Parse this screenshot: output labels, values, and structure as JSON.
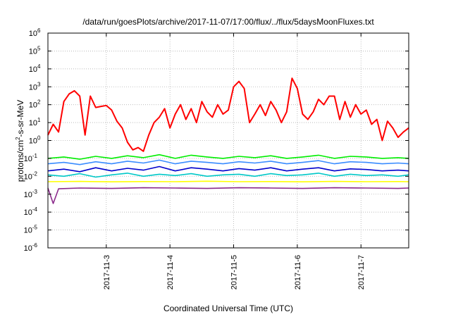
{
  "chart_data": {
    "type": "line",
    "title": "/data/run/goesPlots/archive/2017-11-07/17:00/flux/../flux/5daysMoonFluxes.txt",
    "xlabel": "Coordinated Universal Time (UTC)",
    "ylabel": "protons/cm2-s-sr-MeV",
    "ylabel_parts": {
      "pre": "protons/cm",
      "sup": "2",
      "post": "-s-sr-MeV"
    },
    "y_scale": "log",
    "ylim": [
      1e-06,
      1000000.0
    ],
    "xlim": [
      "2017-11-02 02:00",
      "2017-11-07 18:00"
    ],
    "grid": true,
    "legend": "none",
    "y_ticks": [
      {
        "value": 1e-06,
        "base": "10",
        "exp": "-6"
      },
      {
        "value": 1e-05,
        "base": "10",
        "exp": "-5"
      },
      {
        "value": 0.0001,
        "base": "10",
        "exp": "-4"
      },
      {
        "value": 0.001,
        "base": "10",
        "exp": "-3"
      },
      {
        "value": 0.01,
        "base": "10",
        "exp": "-2"
      },
      {
        "value": 0.1,
        "base": "10",
        "exp": "-1"
      },
      {
        "value": 1,
        "base": "10",
        "exp": "0"
      },
      {
        "value": 10,
        "base": "10",
        "exp": "1"
      },
      {
        "value": 100,
        "base": "10",
        "exp": "2"
      },
      {
        "value": 1000,
        "base": "10",
        "exp": "3"
      },
      {
        "value": 10000,
        "base": "10",
        "exp": "4"
      },
      {
        "value": 100000,
        "base": "10",
        "exp": "5"
      },
      {
        "value": 1000000,
        "base": "10",
        "exp": "6"
      }
    ],
    "x_ticks": [
      "2017-11-3",
      "2017-11-4",
      "2017-11-5",
      "2017-11-6",
      "2017-11-7"
    ],
    "x_tick_values": [
      "2017-11-03 00:00",
      "2017-11-04 00:00",
      "2017-11-05 00:00",
      "2017-11-06 00:00",
      "2017-11-07 00:00"
    ],
    "series": [
      {
        "color": "#ff0000",
        "x": [
          "2017-11-02 02:00",
          "2017-11-02 04:00",
          "2017-11-02 06:00",
          "2017-11-02 08:00",
          "2017-11-02 10:00",
          "2017-11-02 12:00",
          "2017-11-02 14:00",
          "2017-11-02 16:00",
          "2017-11-02 18:00",
          "2017-11-02 20:00",
          "2017-11-02 22:00",
          "2017-11-03 00:00",
          "2017-11-03 02:00",
          "2017-11-03 04:00",
          "2017-11-03 06:00",
          "2017-11-03 08:00",
          "2017-11-03 10:00",
          "2017-11-03 12:00",
          "2017-11-03 14:00",
          "2017-11-03 16:00",
          "2017-11-03 18:00",
          "2017-11-03 20:00",
          "2017-11-03 22:00",
          "2017-11-04 00:00",
          "2017-11-04 02:00",
          "2017-11-04 04:00",
          "2017-11-04 06:00",
          "2017-11-04 08:00",
          "2017-11-04 10:00",
          "2017-11-04 12:00",
          "2017-11-04 14:00",
          "2017-11-04 16:00",
          "2017-11-04 18:00",
          "2017-11-04 20:00",
          "2017-11-04 22:00",
          "2017-11-05 00:00",
          "2017-11-05 02:00",
          "2017-11-05 04:00",
          "2017-11-05 06:00",
          "2017-11-05 08:00",
          "2017-11-05 10:00",
          "2017-11-05 12:00",
          "2017-11-05 14:00",
          "2017-11-05 16:00",
          "2017-11-05 18:00",
          "2017-11-05 20:00",
          "2017-11-05 22:00",
          "2017-11-06 00:00",
          "2017-11-06 02:00",
          "2017-11-06 04:00",
          "2017-11-06 06:00",
          "2017-11-06 08:00",
          "2017-11-06 10:00",
          "2017-11-06 12:00",
          "2017-11-06 14:00",
          "2017-11-06 16:00",
          "2017-11-06 18:00",
          "2017-11-06 20:00",
          "2017-11-06 22:00",
          "2017-11-07 00:00",
          "2017-11-07 02:00",
          "2017-11-07 04:00",
          "2017-11-07 06:00",
          "2017-11-07 08:00",
          "2017-11-07 10:00",
          "2017-11-07 12:00",
          "2017-11-07 14:00",
          "2017-11-07 16:00",
          "2017-11-07 18:00"
        ],
        "values": [
          2,
          8,
          3,
          150,
          400,
          600,
          300,
          2,
          300,
          70,
          80,
          90,
          50,
          12,
          5,
          0.8,
          0.3,
          0.4,
          0.25,
          2,
          10,
          20,
          60,
          5,
          30,
          100,
          15,
          60,
          10,
          150,
          40,
          20,
          100,
          30,
          50,
          1000,
          2000,
          800,
          10,
          30,
          100,
          25,
          150,
          50,
          10,
          40,
          3000,
          800,
          30,
          15,
          40,
          200,
          100,
          300,
          300,
          15,
          150,
          20,
          100,
          30,
          50,
          8,
          15,
          1,
          12,
          5,
          1.5,
          3,
          5
        ]
      },
      {
        "color": "#00ee00",
        "x": [
          "2017-11-02 02:00",
          "2017-11-02 08:00",
          "2017-11-02 14:00",
          "2017-11-02 20:00",
          "2017-11-03 02:00",
          "2017-11-03 08:00",
          "2017-11-03 14:00",
          "2017-11-03 20:00",
          "2017-11-04 02:00",
          "2017-11-04 08:00",
          "2017-11-04 14:00",
          "2017-11-04 20:00",
          "2017-11-05 02:00",
          "2017-11-05 08:00",
          "2017-11-05 14:00",
          "2017-11-05 20:00",
          "2017-11-06 02:00",
          "2017-11-06 08:00",
          "2017-11-06 14:00",
          "2017-11-06 20:00",
          "2017-11-07 02:00",
          "2017-11-07 08:00",
          "2017-11-07 14:00",
          "2017-11-07 18:00"
        ],
        "values": [
          0.1,
          0.12,
          0.09,
          0.13,
          0.1,
          0.14,
          0.11,
          0.16,
          0.1,
          0.15,
          0.12,
          0.1,
          0.13,
          0.11,
          0.14,
          0.1,
          0.12,
          0.15,
          0.1,
          0.13,
          0.12,
          0.1,
          0.11,
          0.1
        ]
      },
      {
        "color": "#3a8cff",
        "x": [
          "2017-11-02 02:00",
          "2017-11-02 08:00",
          "2017-11-02 14:00",
          "2017-11-02 20:00",
          "2017-11-03 02:00",
          "2017-11-03 08:00",
          "2017-11-03 14:00",
          "2017-11-03 20:00",
          "2017-11-04 02:00",
          "2017-11-04 08:00",
          "2017-11-04 14:00",
          "2017-11-04 20:00",
          "2017-11-05 02:00",
          "2017-11-05 08:00",
          "2017-11-05 14:00",
          "2017-11-05 20:00",
          "2017-11-06 02:00",
          "2017-11-06 08:00",
          "2017-11-06 14:00",
          "2017-11-06 20:00",
          "2017-11-07 02:00",
          "2017-11-07 08:00",
          "2017-11-07 14:00",
          "2017-11-07 18:00"
        ],
        "values": [
          0.05,
          0.06,
          0.045,
          0.065,
          0.05,
          0.07,
          0.055,
          0.08,
          0.05,
          0.07,
          0.06,
          0.05,
          0.065,
          0.055,
          0.07,
          0.05,
          0.06,
          0.075,
          0.05,
          0.065,
          0.06,
          0.05,
          0.055,
          0.05
        ]
      },
      {
        "color": "#0000cc",
        "x": [
          "2017-11-02 02:00",
          "2017-11-02 08:00",
          "2017-11-02 14:00",
          "2017-11-02 20:00",
          "2017-11-03 02:00",
          "2017-11-03 08:00",
          "2017-11-03 14:00",
          "2017-11-03 20:00",
          "2017-11-04 02:00",
          "2017-11-04 08:00",
          "2017-11-04 14:00",
          "2017-11-04 20:00",
          "2017-11-05 02:00",
          "2017-11-05 08:00",
          "2017-11-05 14:00",
          "2017-11-05 20:00",
          "2017-11-06 02:00",
          "2017-11-06 08:00",
          "2017-11-06 14:00",
          "2017-11-06 20:00",
          "2017-11-07 02:00",
          "2017-11-07 08:00",
          "2017-11-07 14:00",
          "2017-11-07 18:00"
        ],
        "values": [
          0.02,
          0.025,
          0.018,
          0.03,
          0.02,
          0.028,
          0.022,
          0.035,
          0.02,
          0.03,
          0.025,
          0.02,
          0.027,
          0.022,
          0.03,
          0.02,
          0.025,
          0.03,
          0.02,
          0.026,
          0.024,
          0.02,
          0.022,
          0.02
        ]
      },
      {
        "color": "#00c8c8",
        "x": [
          "2017-11-02 02:00",
          "2017-11-02 08:00",
          "2017-11-02 14:00",
          "2017-11-02 20:00",
          "2017-11-03 02:00",
          "2017-11-03 08:00",
          "2017-11-03 14:00",
          "2017-11-03 20:00",
          "2017-11-04 02:00",
          "2017-11-04 08:00",
          "2017-11-04 14:00",
          "2017-11-04 20:00",
          "2017-11-05 02:00",
          "2017-11-05 08:00",
          "2017-11-05 14:00",
          "2017-11-05 20:00",
          "2017-11-06 02:00",
          "2017-11-06 08:00",
          "2017-11-06 14:00",
          "2017-11-06 20:00",
          "2017-11-07 02:00",
          "2017-11-07 08:00",
          "2017-11-07 14:00",
          "2017-11-07 18:00"
        ],
        "values": [
          0.012,
          0.01,
          0.014,
          0.009,
          0.012,
          0.015,
          0.01,
          0.013,
          0.011,
          0.014,
          0.01,
          0.012,
          0.013,
          0.01,
          0.014,
          0.011,
          0.012,
          0.015,
          0.01,
          0.013,
          0.011,
          0.012,
          0.01,
          0.012
        ]
      },
      {
        "color": "#ffff00",
        "x": [
          "2017-11-02 02:00",
          "2017-11-02 14:00",
          "2017-11-03 02:00",
          "2017-11-03 14:00",
          "2017-11-04 02:00",
          "2017-11-04 14:00",
          "2017-11-05 02:00",
          "2017-11-05 14:00",
          "2017-11-06 02:00",
          "2017-11-06 14:00",
          "2017-11-07 02:00",
          "2017-11-07 14:00",
          "2017-11-07 18:00"
        ],
        "values": [
          0.005,
          0.0052,
          0.0049,
          0.0051,
          0.005,
          0.0053,
          0.005,
          0.0051,
          0.0049,
          0.0052,
          0.005,
          0.0051,
          0.005
        ]
      },
      {
        "color": "#8b2a8b",
        "x": [
          "2017-11-02 02:00",
          "2017-11-02 04:00",
          "2017-11-02 06:00",
          "2017-11-02 14:00",
          "2017-11-03 02:00",
          "2017-11-03 14:00",
          "2017-11-04 02:00",
          "2017-11-04 14:00",
          "2017-11-05 02:00",
          "2017-11-05 14:00",
          "2017-11-06 02:00",
          "2017-11-06 14:00",
          "2017-11-07 02:00",
          "2017-11-07 14:00",
          "2017-11-07 18:00"
        ],
        "values": [
          0.0022,
          0.0003,
          0.002,
          0.0022,
          0.0021,
          0.0023,
          0.0022,
          0.0021,
          0.0023,
          0.0022,
          0.0021,
          0.0023,
          0.0022,
          0.0021,
          0.0022
        ]
      }
    ]
  }
}
